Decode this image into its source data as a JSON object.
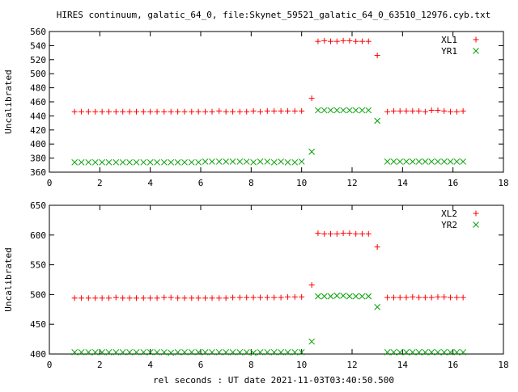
{
  "figure": {
    "title": "HIRES continuum, galatic_64_0, file:Skynet_59521_galatic_64_0_63510_12976.cyb.txt",
    "xlabel": "rel seconds : UT date 2021-11-03T03:40:50.500"
  },
  "chart_data": [
    {
      "type": "scatter",
      "ylabel": "Uncalibrated",
      "xlim": [
        0,
        18
      ],
      "ylim": [
        360,
        560
      ],
      "xticks": [
        0,
        2,
        4,
        6,
        8,
        10,
        12,
        14,
        16,
        18
      ],
      "yticks": [
        360,
        380,
        400,
        420,
        440,
        460,
        480,
        500,
        520,
        540,
        560
      ],
      "legend_position": "top-right",
      "series": [
        {
          "name": "XL1",
          "marker": "plus",
          "color": "#ff0000",
          "x": [
            1.0,
            1.27,
            1.55,
            1.82,
            2.09,
            2.36,
            2.64,
            2.91,
            3.18,
            3.45,
            3.73,
            4.0,
            4.27,
            4.55,
            4.82,
            5.09,
            5.36,
            5.64,
            5.91,
            6.18,
            6.45,
            6.73,
            7.0,
            7.27,
            7.55,
            7.82,
            8.09,
            8.36,
            8.64,
            8.91,
            9.18,
            9.45,
            9.73,
            10.0,
            10.4,
            10.65,
            10.9,
            11.15,
            11.4,
            11.65,
            11.9,
            12.15,
            12.4,
            12.65,
            13.0,
            13.4,
            13.65,
            13.9,
            14.15,
            14.4,
            14.65,
            14.9,
            15.15,
            15.4,
            15.65,
            15.9,
            16.15,
            16.4
          ],
          "y": [
            446,
            446,
            446,
            446,
            446,
            446,
            446,
            446,
            446,
            446,
            446,
            446,
            446,
            446,
            446,
            446,
            446,
            446,
            446,
            446,
            446,
            447,
            446,
            446,
            446,
            446,
            447,
            446,
            447,
            447,
            447,
            447,
            447,
            447,
            465,
            546,
            547,
            546,
            546,
            547,
            547,
            546,
            546,
            546,
            526,
            446,
            447,
            447,
            447,
            447,
            447,
            446,
            448,
            448,
            447,
            446,
            446,
            447
          ]
        },
        {
          "name": "YR1",
          "marker": "cross",
          "color": "#00a000",
          "x": [
            1.0,
            1.27,
            1.55,
            1.82,
            2.09,
            2.36,
            2.64,
            2.91,
            3.18,
            3.45,
            3.73,
            4.0,
            4.27,
            4.55,
            4.82,
            5.09,
            5.36,
            5.64,
            5.91,
            6.18,
            6.45,
            6.73,
            7.0,
            7.27,
            7.55,
            7.82,
            8.09,
            8.36,
            8.64,
            8.91,
            9.18,
            9.45,
            9.73,
            10.0,
            10.4,
            10.65,
            10.9,
            11.15,
            11.4,
            11.65,
            11.9,
            12.15,
            12.4,
            12.65,
            13.0,
            13.4,
            13.65,
            13.9,
            14.15,
            14.4,
            14.65,
            14.9,
            15.15,
            15.4,
            15.65,
            15.9,
            16.15,
            16.4
          ],
          "y": [
            374,
            374,
            374,
            374,
            374,
            374,
            374,
            374,
            374,
            374,
            374,
            374,
            374,
            374,
            374,
            374,
            374,
            374,
            374,
            375,
            375,
            375,
            375,
            375,
            375,
            375,
            374,
            375,
            375,
            374,
            375,
            374,
            374,
            375,
            389,
            448,
            448,
            448,
            448,
            448,
            448,
            448,
            448,
            448,
            433,
            375,
            375,
            375,
            375,
            375,
            375,
            375,
            375,
            375,
            375,
            375,
            375,
            375
          ]
        }
      ]
    },
    {
      "type": "scatter",
      "ylabel": "Uncalibrated",
      "xlim": [
        0,
        18
      ],
      "ylim": [
        400,
        650
      ],
      "xticks": [
        0,
        2,
        4,
        6,
        8,
        10,
        12,
        14,
        16,
        18
      ],
      "yticks": [
        400,
        450,
        500,
        550,
        600,
        650
      ],
      "legend_position": "top-right",
      "series": [
        {
          "name": "XL2",
          "marker": "plus",
          "color": "#ff0000",
          "x": [
            1.0,
            1.27,
            1.55,
            1.82,
            2.09,
            2.36,
            2.64,
            2.91,
            3.18,
            3.45,
            3.73,
            4.0,
            4.27,
            4.55,
            4.82,
            5.09,
            5.36,
            5.64,
            5.91,
            6.18,
            6.45,
            6.73,
            7.0,
            7.27,
            7.55,
            7.82,
            8.09,
            8.36,
            8.64,
            8.91,
            9.18,
            9.45,
            9.73,
            10.0,
            10.4,
            10.65,
            10.9,
            11.15,
            11.4,
            11.65,
            11.9,
            12.15,
            12.4,
            12.65,
            13.0,
            13.4,
            13.65,
            13.9,
            14.15,
            14.4,
            14.65,
            14.9,
            15.15,
            15.4,
            15.65,
            15.9,
            16.15,
            16.4
          ],
          "y": [
            494,
            494,
            494,
            494,
            494,
            494,
            495,
            494,
            494,
            494,
            494,
            494,
            494,
            495,
            495,
            494,
            494,
            494,
            494,
            494,
            494,
            494,
            494,
            495,
            495,
            495,
            495,
            495,
            495,
            495,
            495,
            496,
            496,
            496,
            516,
            603,
            602,
            602,
            602,
            603,
            603,
            602,
            602,
            602,
            580,
            495,
            495,
            495,
            495,
            496,
            495,
            495,
            495,
            496,
            496,
            495,
            495,
            495
          ]
        },
        {
          "name": "YR2",
          "marker": "cross",
          "color": "#00a000",
          "x": [
            1.0,
            1.27,
            1.55,
            1.82,
            2.09,
            2.36,
            2.64,
            2.91,
            3.18,
            3.45,
            3.73,
            4.0,
            4.27,
            4.55,
            4.82,
            5.09,
            5.36,
            5.64,
            5.91,
            6.18,
            6.45,
            6.73,
            7.0,
            7.27,
            7.55,
            7.82,
            8.09,
            8.36,
            8.64,
            8.91,
            9.18,
            9.45,
            9.73,
            10.0,
            10.4,
            10.65,
            10.9,
            11.15,
            11.4,
            11.65,
            11.9,
            12.15,
            12.4,
            12.65,
            13.0,
            13.4,
            13.65,
            13.9,
            14.15,
            14.4,
            14.65,
            14.9,
            15.15,
            15.4,
            15.65,
            15.9,
            16.15,
            16.4
          ],
          "y": [
            403,
            403,
            403,
            403,
            403,
            403,
            403,
            403,
            403,
            403,
            403,
            403,
            403,
            403,
            402,
            403,
            403,
            403,
            403,
            403,
            403,
            403,
            403,
            403,
            403,
            403,
            402,
            403,
            403,
            403,
            403,
            403,
            403,
            403,
            421,
            497,
            497,
            497,
            498,
            498,
            497,
            497,
            497,
            497,
            479,
            403,
            403,
            403,
            403,
            403,
            403,
            403,
            403,
            403,
            403,
            403,
            403,
            403
          ]
        }
      ]
    }
  ]
}
